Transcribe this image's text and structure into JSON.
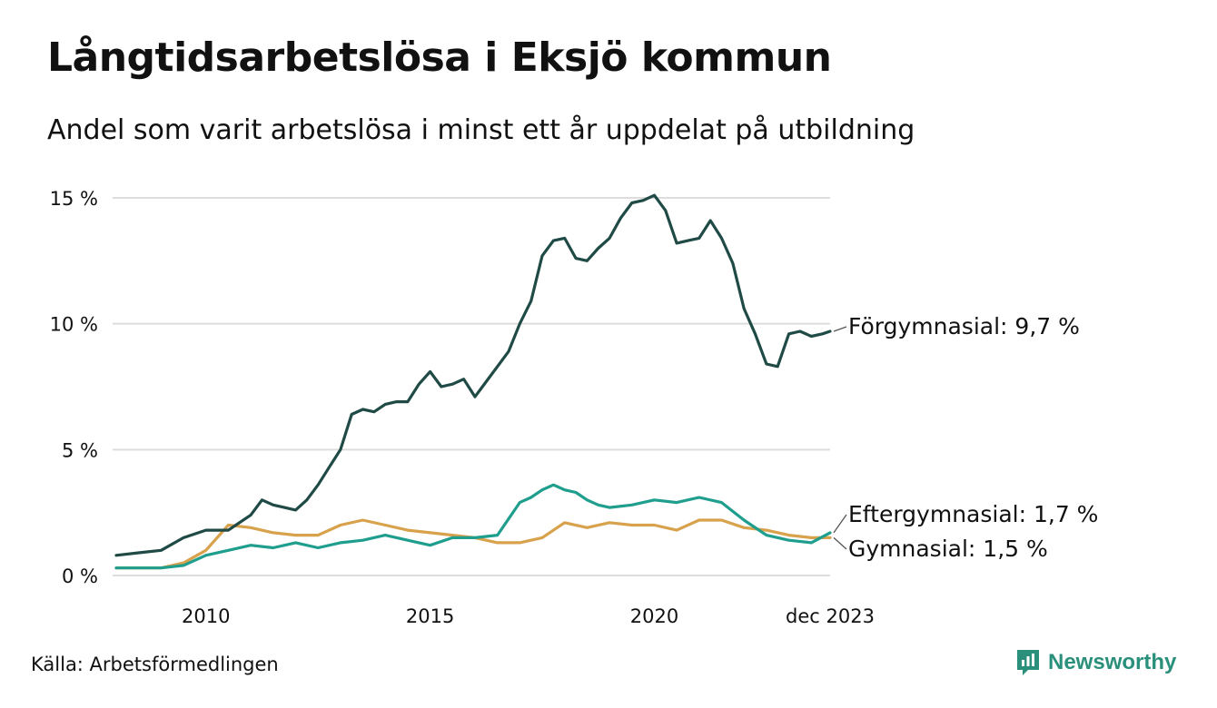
{
  "title": "Långtidsarbetslösa i Eksjö kommun",
  "subtitle": "Andel som varit arbetslösa i minst ett år uppdelat på utbildning",
  "source": "Källa: Arbetsförmedlingen",
  "brand": {
    "name": "Newsworthy",
    "icon": "newsworthy-logo-icon"
  },
  "colors": {
    "forgymnasial": "#1f4a45",
    "eftergymnasial": "#1f9e8e",
    "gymnasial": "#d8a24c",
    "grid": "#dddddd"
  },
  "chart_data": {
    "type": "line",
    "title": "Långtidsarbetslösa i Eksjö kommun",
    "subtitle": "Andel som varit arbetslösa i minst ett år uppdelat på utbildning",
    "xlabel": "",
    "ylabel": "",
    "xlim": [
      2008.0,
      2023.92
    ],
    "ylim": [
      0,
      15
    ],
    "grid": true,
    "legend": "end-of-line labels",
    "xticks": [
      {
        "value": 2010,
        "label": "2010"
      },
      {
        "value": 2015,
        "label": "2015"
      },
      {
        "value": 2020,
        "label": "2020"
      },
      {
        "value": 2023.92,
        "label": "dec 2023"
      }
    ],
    "yticks": [
      {
        "value": 0,
        "label": "0 %"
      },
      {
        "value": 5,
        "label": "5 %"
      },
      {
        "value": 10,
        "label": "10 %"
      },
      {
        "value": 15,
        "label": "15 %"
      }
    ],
    "series": [
      {
        "name": "Förgymnasial",
        "end_label": "Förgymnasial: 9,7 %",
        "color": "#1f4a45",
        "x": [
          2008.0,
          2008.5,
          2009.0,
          2009.5,
          2010.0,
          2010.5,
          2011.0,
          2011.25,
          2011.5,
          2011.75,
          2012.0,
          2012.25,
          2012.5,
          2012.75,
          2013.0,
          2013.25,
          2013.5,
          2013.75,
          2014.0,
          2014.25,
          2014.5,
          2014.75,
          2015.0,
          2015.25,
          2015.5,
          2015.75,
          2016.0,
          2016.25,
          2016.5,
          2016.75,
          2017.0,
          2017.25,
          2017.5,
          2017.75,
          2018.0,
          2018.25,
          2018.5,
          2018.75,
          2019.0,
          2019.25,
          2019.5,
          2019.75,
          2020.0,
          2020.25,
          2020.5,
          2020.75,
          2021.0,
          2021.25,
          2021.5,
          2021.75,
          2022.0,
          2022.25,
          2022.5,
          2022.75,
          2023.0,
          2023.25,
          2023.5,
          2023.75,
          2023.92
        ],
        "values": [
          0.8,
          0.9,
          1.0,
          1.5,
          1.8,
          1.8,
          2.4,
          3.0,
          2.8,
          2.7,
          2.6,
          3.0,
          3.6,
          4.3,
          5.0,
          6.4,
          6.6,
          6.5,
          6.8,
          6.9,
          6.9,
          7.6,
          8.1,
          7.5,
          7.6,
          7.8,
          7.1,
          7.7,
          8.3,
          8.9,
          10.0,
          10.9,
          12.7,
          13.3,
          13.4,
          12.6,
          12.5,
          13.0,
          13.4,
          14.2,
          14.8,
          14.9,
          15.1,
          14.5,
          13.2,
          13.3,
          13.4,
          14.1,
          13.4,
          12.4,
          10.6,
          9.6,
          8.4,
          8.3,
          9.6,
          9.7,
          9.5,
          9.6,
          9.7
        ]
      },
      {
        "name": "Eftergymnasial",
        "end_label": "Eftergymnasial: 1,7 %",
        "color": "#1f9e8e",
        "x": [
          2008.0,
          2008.5,
          2009.0,
          2009.5,
          2010.0,
          2010.5,
          2011.0,
          2011.5,
          2012.0,
          2012.5,
          2013.0,
          2013.5,
          2014.0,
          2014.5,
          2015.0,
          2015.5,
          2016.0,
          2016.5,
          2017.0,
          2017.25,
          2017.5,
          2017.75,
          2018.0,
          2018.25,
          2018.5,
          2018.75,
          2019.0,
          2019.5,
          2020.0,
          2020.5,
          2021.0,
          2021.5,
          2022.0,
          2022.5,
          2023.0,
          2023.5,
          2023.92
        ],
        "values": [
          0.3,
          0.3,
          0.3,
          0.4,
          0.8,
          1.0,
          1.2,
          1.1,
          1.3,
          1.1,
          1.3,
          1.4,
          1.6,
          1.4,
          1.2,
          1.5,
          1.5,
          1.6,
          2.9,
          3.1,
          3.4,
          3.6,
          3.4,
          3.3,
          3.0,
          2.8,
          2.7,
          2.8,
          3.0,
          2.9,
          3.1,
          2.9,
          2.2,
          1.6,
          1.4,
          1.3,
          1.7
        ]
      },
      {
        "name": "Gymnasial",
        "end_label": "Gymnasial: 1,5 %",
        "color": "#d8a24c",
        "x": [
          2008.0,
          2008.5,
          2009.0,
          2009.5,
          2010.0,
          2010.5,
          2011.0,
          2011.5,
          2012.0,
          2012.5,
          2013.0,
          2013.5,
          2014.0,
          2014.5,
          2015.0,
          2015.5,
          2016.0,
          2016.5,
          2017.0,
          2017.5,
          2018.0,
          2018.5,
          2019.0,
          2019.5,
          2020.0,
          2020.5,
          2021.0,
          2021.5,
          2022.0,
          2022.5,
          2023.0,
          2023.5,
          2023.92
        ],
        "values": [
          0.3,
          0.3,
          0.3,
          0.5,
          1.0,
          2.0,
          1.9,
          1.7,
          1.6,
          1.6,
          2.0,
          2.2,
          2.0,
          1.8,
          1.7,
          1.6,
          1.5,
          1.3,
          1.3,
          1.5,
          2.1,
          1.9,
          2.1,
          2.0,
          2.0,
          1.8,
          2.2,
          2.2,
          1.9,
          1.8,
          1.6,
          1.5,
          1.5
        ]
      }
    ]
  }
}
